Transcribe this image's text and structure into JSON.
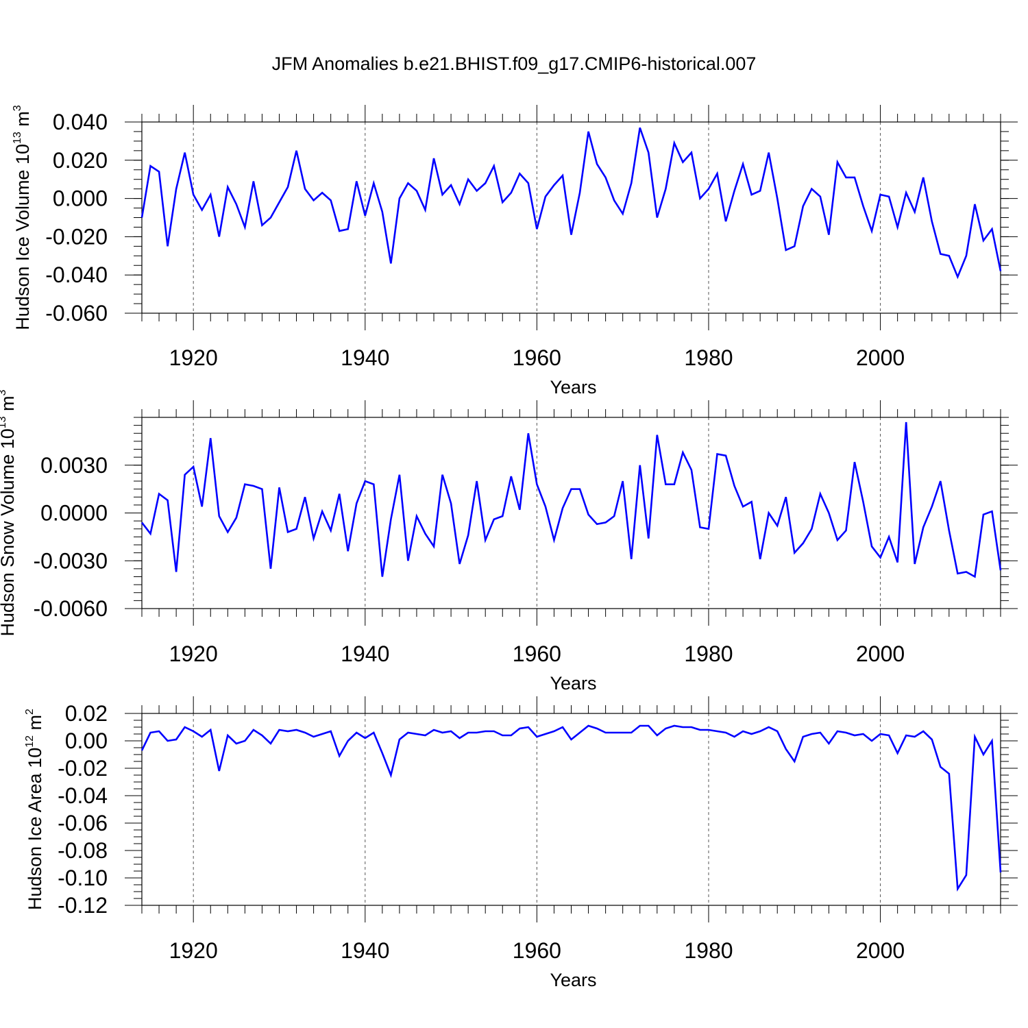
{
  "title": "JFM Anomalies b.e21.BHIST.f09_g17.CMIP6-historical.007",
  "colors": {
    "line": "#0000ff",
    "axis": "#000000",
    "grid": "#555555"
  },
  "chart_data": [
    {
      "type": "line",
      "title": "JFM Anomalies b.e21.BHIST.f09_g17.CMIP6-historical.007",
      "xlabel": "Years",
      "ylabel": {
        "prefix": "Hudson Ice Volume 10",
        "exponent": "13",
        "unit": " m",
        "unit_exponent": "3"
      },
      "xlim": [
        1914,
        2014
      ],
      "ylim": [
        -0.06,
        0.04
      ],
      "xticks": [
        1920,
        1940,
        1960,
        1980,
        2000
      ],
      "yticks": [
        -0.06,
        -0.04,
        -0.02,
        0.0,
        0.02,
        0.04
      ],
      "ytick_labels": [
        "-0.060",
        "-0.040",
        "-0.020",
        "0.000",
        "0.020",
        "0.040"
      ],
      "ytick_minor": 0.005,
      "grid": "dashed vertical at major x ticks",
      "series": [
        {
          "name": "Hudson Ice Volume",
          "x_start": 1914,
          "values": [
            -0.01,
            0.017,
            0.014,
            -0.025,
            0.005,
            0.024,
            0.002,
            -0.006,
            0.002,
            -0.02,
            0.006,
            -0.003,
            -0.015,
            0.009,
            -0.014,
            -0.01,
            -0.002,
            0.006,
            0.025,
            0.005,
            -0.001,
            0.003,
            -0.001,
            -0.017,
            -0.016,
            0.009,
            -0.009,
            0.008,
            -0.007,
            -0.034,
            0.0,
            0.008,
            0.004,
            -0.006,
            0.021,
            0.002,
            0.007,
            -0.003,
            0.01,
            0.004,
            0.008,
            0.017,
            -0.002,
            0.003,
            0.013,
            0.008,
            -0.016,
            0.001,
            0.007,
            0.012,
            -0.019,
            0.003,
            0.035,
            0.018,
            0.011,
            -0.001,
            -0.008,
            0.008,
            0.037,
            0.024,
            -0.01,
            0.005,
            0.029,
            0.019,
            0.024,
            0.0,
            0.005,
            0.013,
            -0.012,
            0.004,
            0.018,
            0.002,
            0.004,
            0.024,
            0.0,
            -0.027,
            -0.025,
            -0.004,
            0.005,
            0.001,
            -0.019,
            0.019,
            0.011,
            0.011,
            -0.004,
            -0.017,
            0.002,
            0.001,
            -0.015,
            0.003,
            -0.007,
            0.011,
            -0.012,
            -0.029,
            -0.03,
            -0.041,
            -0.03,
            -0.003,
            -0.022,
            -0.016,
            -0.038
          ]
        }
      ]
    },
    {
      "type": "line",
      "xlabel": "Years",
      "ylabel": {
        "prefix": "Hudson Snow Volume 10",
        "exponent": "13",
        "unit": " m",
        "unit_exponent": "3"
      },
      "xlim": [
        1914,
        2014
      ],
      "ylim": [
        -0.006,
        0.006
      ],
      "xticks": [
        1920,
        1940,
        1960,
        1980,
        2000
      ],
      "yticks": [
        -0.006,
        -0.003,
        0.0,
        0.003
      ],
      "ytick_labels": [
        "-0.0060",
        "-0.0030",
        "0.0000",
        "0.0030"
      ],
      "ytick_minor": 0.0005,
      "grid": "dashed vertical at major x ticks",
      "series": [
        {
          "name": "Hudson Snow Volume",
          "x_start": 1914,
          "values": [
            -0.0006,
            -0.0013,
            0.0012,
            0.0008,
            -0.0037,
            0.0024,
            0.0029,
            0.0004,
            0.0047,
            -0.0002,
            -0.0012,
            -0.0003,
            0.0018,
            0.0017,
            0.0015,
            -0.0035,
            0.0016,
            -0.0012,
            -0.001,
            0.001,
            -0.0016,
            0.0001,
            -0.0011,
            0.0012,
            -0.0024,
            0.0006,
            0.002,
            0.0018,
            -0.004,
            -0.0004,
            0.0024,
            -0.003,
            -0.0002,
            -0.0013,
            -0.0021,
            0.0024,
            0.0006,
            -0.0032,
            -0.0014,
            0.002,
            -0.0017,
            -0.0004,
            -0.0002,
            0.0023,
            0.0002,
            0.005,
            0.0018,
            0.0004,
            -0.0017,
            0.0003,
            0.0015,
            0.0015,
            -0.0001,
            -0.0007,
            -0.0006,
            -0.0002,
            0.002,
            -0.0029,
            0.003,
            -0.0016,
            0.0049,
            0.0018,
            0.0018,
            0.0038,
            0.0027,
            -0.0009,
            -0.001,
            0.0037,
            0.0036,
            0.0017,
            0.0004,
            0.0007,
            -0.0029,
            0.0,
            -0.0008,
            0.001,
            -0.0025,
            -0.0019,
            -0.001,
            0.0012,
            0.0,
            -0.0017,
            -0.0011,
            0.0032,
            0.0007,
            -0.0021,
            -0.0028,
            -0.0015,
            -0.0031,
            0.0057,
            -0.0032,
            -0.0009,
            0.0004,
            0.002,
            -0.0011,
            -0.0038,
            -0.0037,
            -0.004,
            -0.0001,
            0.0001,
            -0.0036
          ]
        }
      ]
    },
    {
      "type": "line",
      "xlabel": "Years",
      "ylabel": {
        "prefix": "Hudson Ice Area 10",
        "exponent": "12",
        "unit": " m",
        "unit_exponent": "2"
      },
      "xlim": [
        1914,
        2014
      ],
      "ylim": [
        -0.12,
        0.02
      ],
      "xticks": [
        1920,
        1940,
        1960,
        1980,
        2000
      ],
      "yticks": [
        -0.12,
        -0.1,
        -0.08,
        -0.06,
        -0.04,
        -0.02,
        0.0,
        0.02
      ],
      "ytick_labels": [
        "-0.12",
        "-0.10",
        "-0.08",
        "-0.06",
        "-0.04",
        "-0.02",
        "0.00",
        "0.02"
      ],
      "ytick_minor": 0.005,
      "grid": "dashed vertical at major x ticks",
      "series": [
        {
          "name": "Hudson Ice Area",
          "x_start": 1914,
          "values": [
            -0.007,
            0.006,
            0.007,
            0.0,
            0.001,
            0.01,
            0.007,
            0.003,
            0.008,
            -0.022,
            0.004,
            -0.002,
            0.0,
            0.008,
            0.004,
            -0.002,
            0.008,
            0.007,
            0.008,
            0.006,
            0.003,
            0.005,
            0.007,
            -0.011,
            0.0,
            0.006,
            0.002,
            0.006,
            -0.009,
            -0.025,
            0.001,
            0.006,
            0.005,
            0.004,
            0.008,
            0.006,
            0.007,
            0.002,
            0.006,
            0.006,
            0.007,
            0.007,
            0.004,
            0.004,
            0.009,
            0.01,
            0.003,
            0.005,
            0.007,
            0.01,
            0.001,
            0.006,
            0.011,
            0.009,
            0.006,
            0.006,
            0.006,
            0.006,
            0.011,
            0.011,
            0.004,
            0.009,
            0.011,
            0.01,
            0.01,
            0.008,
            0.008,
            0.007,
            0.006,
            0.003,
            0.007,
            0.005,
            0.007,
            0.01,
            0.007,
            -0.006,
            -0.015,
            0.003,
            0.005,
            0.006,
            -0.002,
            0.007,
            0.006,
            0.004,
            0.005,
            0.0,
            0.005,
            0.004,
            -0.009,
            0.004,
            0.003,
            0.007,
            0.001,
            -0.019,
            -0.024,
            -0.108,
            -0.098,
            0.003,
            -0.01,
            0.0,
            -0.096
          ]
        }
      ]
    }
  ]
}
